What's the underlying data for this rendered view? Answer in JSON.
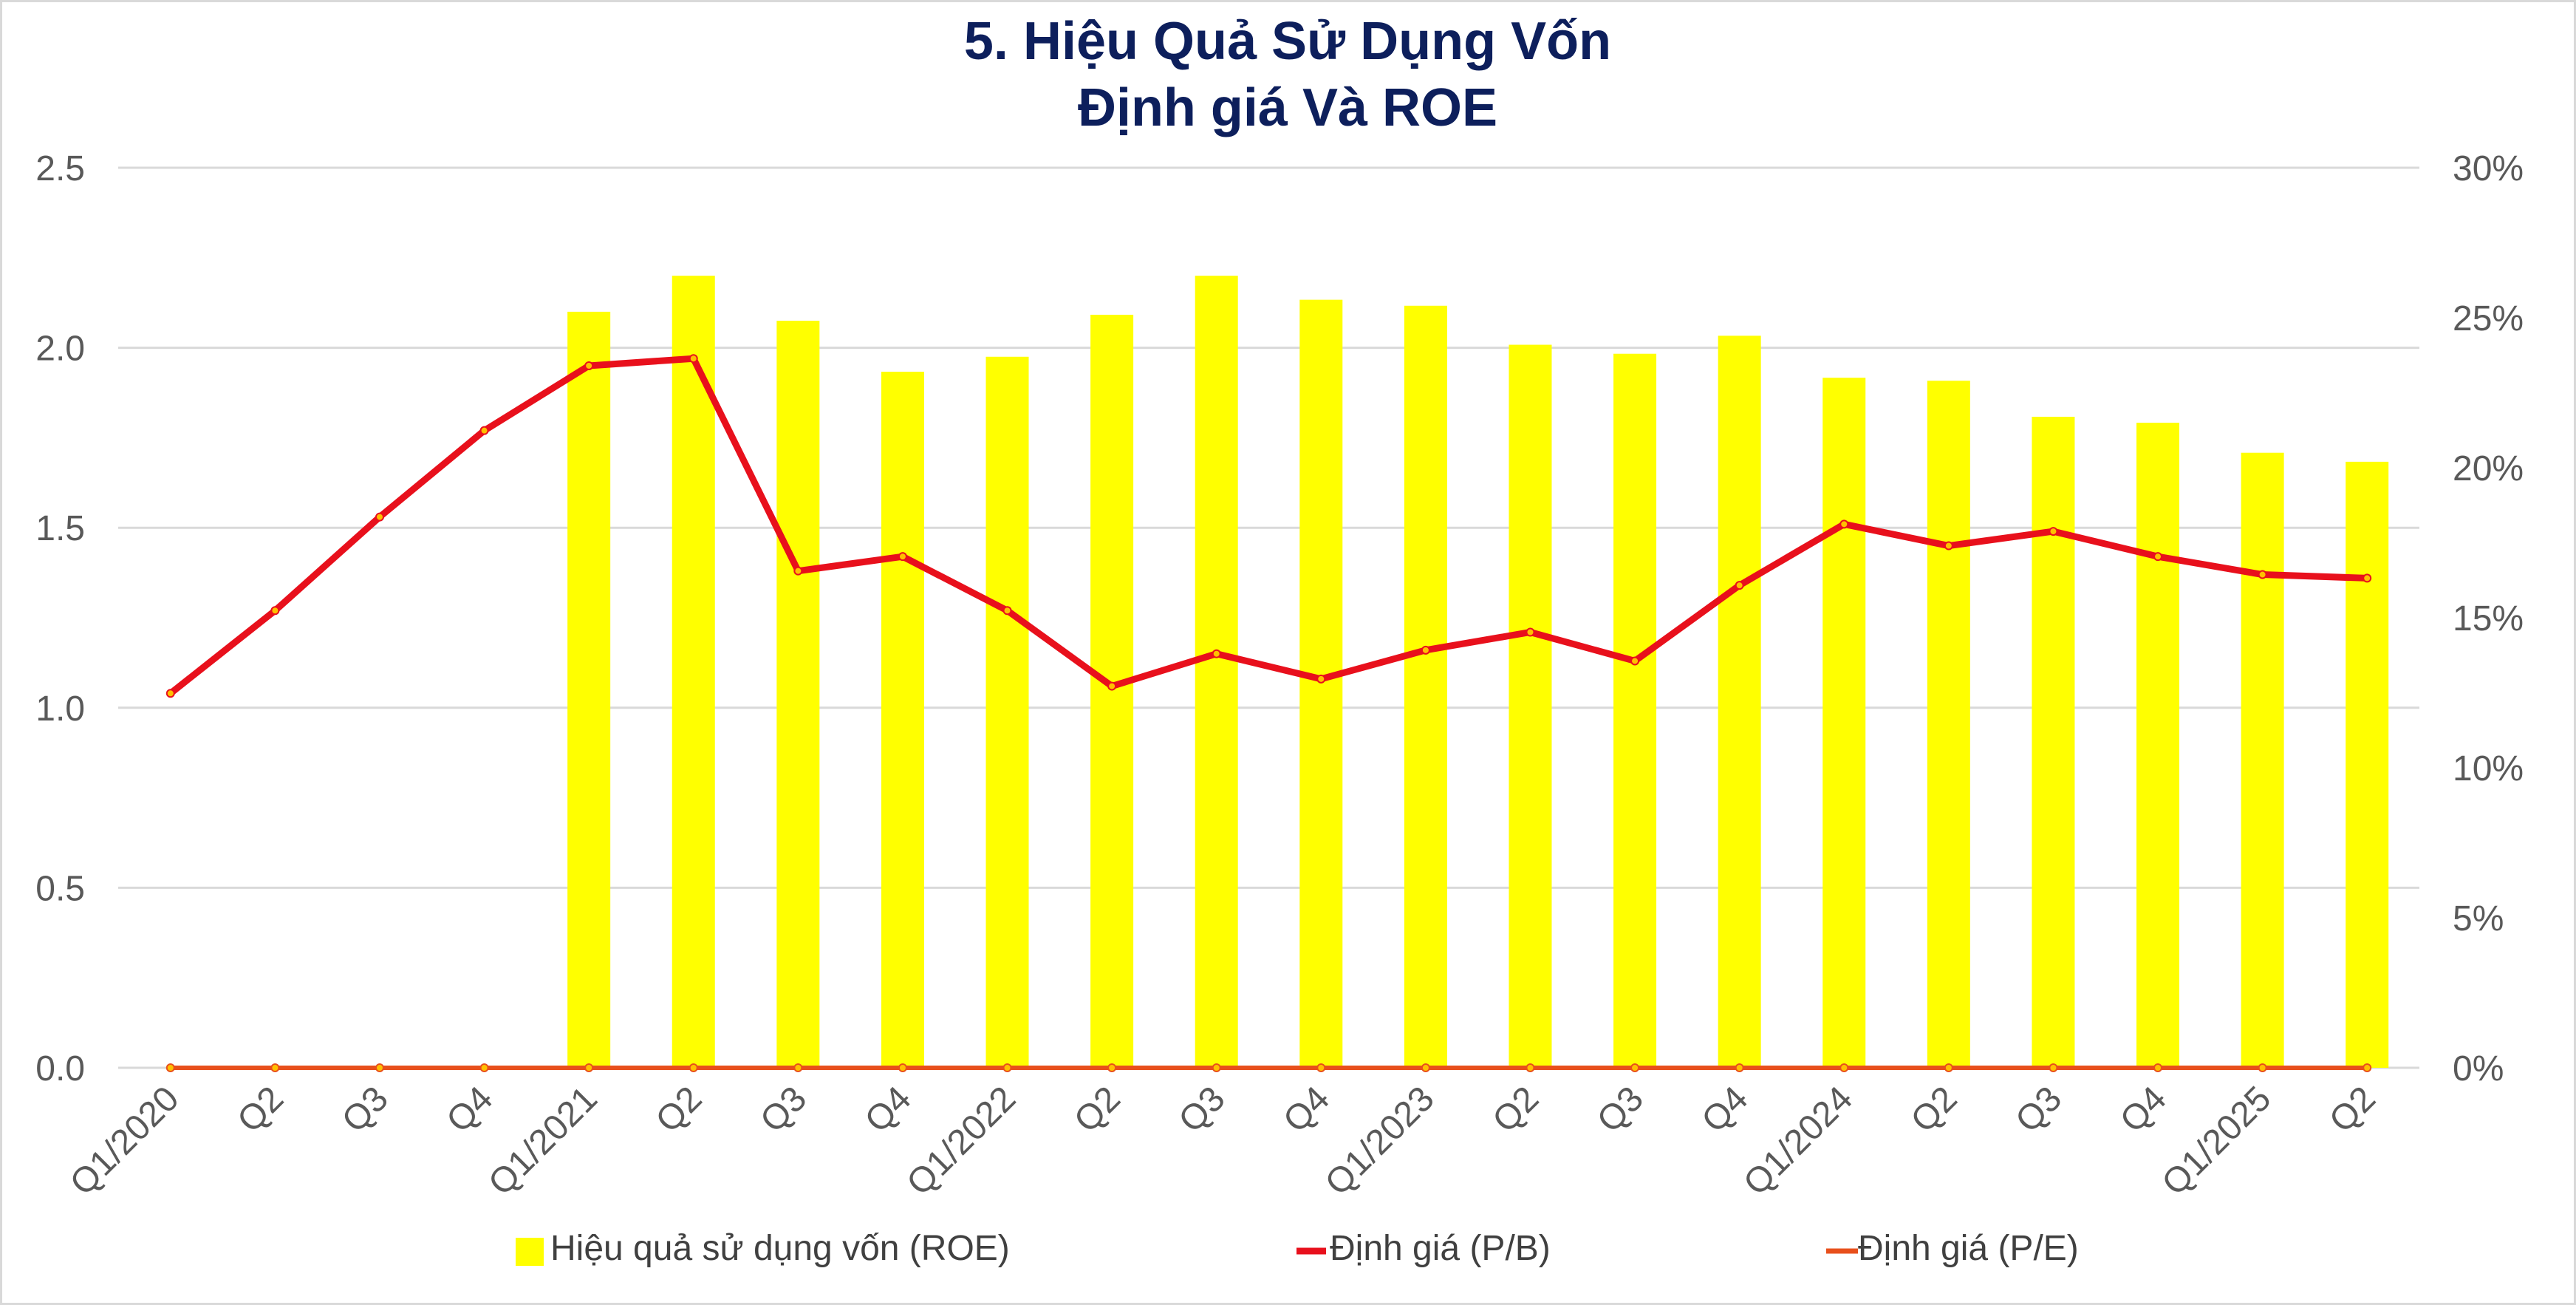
{
  "chart_data": {
    "type": "bar",
    "title": [
      "5. Hiệu Quả Sử Dụng Vốn",
      "Định giá Và ROE"
    ],
    "categories": [
      "Q1/2020",
      "Q2",
      "Q3",
      "Q4",
      "Q1/2021",
      "Q2",
      "Q3",
      "Q4",
      "Q1/2022",
      "Q2",
      "Q3",
      "Q4",
      "Q1/2023",
      "Q2",
      "Q3",
      "Q4",
      "Q1/2024",
      "Q2",
      "Q3",
      "Q4",
      "Q1/2025",
      "Q2"
    ],
    "y_left": {
      "min": 0,
      "max": 2.5,
      "ticks": [
        "0.0",
        "0.5",
        "1.0",
        "1.5",
        "2.0",
        "2.5"
      ],
      "tick_values": [
        0,
        0.5,
        1.0,
        1.5,
        2.0,
        2.5
      ]
    },
    "y_right": {
      "min": 0,
      "max": 30,
      "ticks": [
        "0%",
        "5%",
        "10%",
        "15%",
        "20%",
        "25%",
        "30%"
      ],
      "tick_values": [
        0,
        5,
        10,
        15,
        20,
        25,
        30
      ]
    },
    "grid": true,
    "legend_position": "bottom",
    "series": [
      {
        "name": "Hiệu quả sử dụng vốn (ROE)",
        "type": "bar",
        "axis": "right",
        "color": "#ffff00",
        "values": [
          null,
          null,
          null,
          null,
          25.2,
          26.4,
          24.9,
          23.2,
          23.7,
          25.1,
          26.4,
          25.6,
          25.4,
          24.1,
          23.8,
          24.4,
          23.0,
          22.9,
          21.7,
          21.5,
          20.5,
          20.2
        ]
      },
      {
        "name": "Định giá (P/B)",
        "type": "line",
        "axis": "left",
        "color": "#e8101c",
        "marker_color": "#ffc000",
        "values": [
          1.04,
          1.27,
          1.53,
          1.77,
          1.95,
          1.97,
          1.38,
          1.42,
          1.27,
          1.06,
          1.15,
          1.08,
          1.16,
          1.21,
          1.13,
          1.34,
          1.51,
          1.45,
          1.49,
          1.42,
          1.37,
          1.36
        ]
      },
      {
        "name": "Định giá (P/E)",
        "type": "line",
        "axis": "left",
        "color": "#e8501c",
        "marker_color": "#ffc000",
        "values": [
          0,
          0,
          0,
          0,
          0,
          0,
          0,
          0,
          0,
          0,
          0,
          0,
          0,
          0,
          0,
          0,
          0,
          0,
          0,
          0,
          0,
          0
        ]
      }
    ]
  }
}
